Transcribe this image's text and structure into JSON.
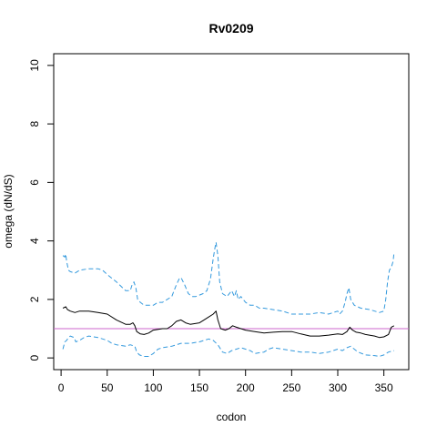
{
  "chart_data": {
    "type": "line",
    "title": "Rv0209",
    "xlabel": "codon",
    "ylabel": "omega (dN/dS)",
    "xlim": [
      -8,
      377
    ],
    "ylim": [
      -0.4,
      10.4
    ],
    "x_ticks": [
      0,
      50,
      100,
      150,
      200,
      250,
      300,
      350
    ],
    "y_ticks": [
      0,
      2,
      4,
      6,
      8,
      10
    ],
    "grid": false,
    "legend": "none",
    "reference_line": {
      "y": 1,
      "color": "#cc66cc"
    },
    "series": [
      {
        "role": "upper",
        "style": "dashed",
        "color": "#3399dd",
        "points": [
          [
            2,
            3.5
          ],
          [
            4,
            3.45
          ],
          [
            5,
            3.55
          ],
          [
            6,
            3.3
          ],
          [
            8,
            3.0
          ],
          [
            10,
            2.95
          ],
          [
            15,
            2.9
          ],
          [
            20,
            3.0
          ],
          [
            30,
            3.05
          ],
          [
            40,
            3.05
          ],
          [
            45,
            3.0
          ],
          [
            50,
            2.85
          ],
          [
            60,
            2.6
          ],
          [
            70,
            2.3
          ],
          [
            75,
            2.3
          ],
          [
            77,
            2.5
          ],
          [
            79,
            2.6
          ],
          [
            81,
            2.4
          ],
          [
            83,
            2.0
          ],
          [
            86,
            1.9
          ],
          [
            90,
            1.8
          ],
          [
            100,
            1.8
          ],
          [
            105,
            1.9
          ],
          [
            110,
            1.9
          ],
          [
            115,
            2.0
          ],
          [
            120,
            2.1
          ],
          [
            125,
            2.5
          ],
          [
            128,
            2.7
          ],
          [
            130,
            2.75
          ],
          [
            134,
            2.5
          ],
          [
            138,
            2.2
          ],
          [
            142,
            2.1
          ],
          [
            146,
            2.1
          ],
          [
            150,
            2.15
          ],
          [
            154,
            2.2
          ],
          [
            158,
            2.3
          ],
          [
            162,
            2.7
          ],
          [
            165,
            3.4
          ],
          [
            167,
            3.8
          ],
          [
            168,
            3.95
          ],
          [
            170,
            3.5
          ],
          [
            172,
            2.6
          ],
          [
            175,
            2.2
          ],
          [
            180,
            2.1
          ],
          [
            185,
            2.3
          ],
          [
            188,
            2.1
          ],
          [
            190,
            2.3
          ],
          [
            192,
            2.0
          ],
          [
            195,
            2.1
          ],
          [
            200,
            1.9
          ],
          [
            205,
            1.8
          ],
          [
            210,
            1.8
          ],
          [
            215,
            1.7
          ],
          [
            220,
            1.7
          ],
          [
            230,
            1.65
          ],
          [
            240,
            1.6
          ],
          [
            250,
            1.5
          ],
          [
            260,
            1.5
          ],
          [
            270,
            1.5
          ],
          [
            280,
            1.55
          ],
          [
            290,
            1.5
          ],
          [
            300,
            1.6
          ],
          [
            302,
            1.5
          ],
          [
            305,
            1.6
          ],
          [
            308,
            1.9
          ],
          [
            310,
            2.2
          ],
          [
            312,
            2.4
          ],
          [
            314,
            2.0
          ],
          [
            318,
            1.8
          ],
          [
            325,
            1.7
          ],
          [
            335,
            1.65
          ],
          [
            340,
            1.6
          ],
          [
            345,
            1.55
          ],
          [
            350,
            1.6
          ],
          [
            352,
            2.0
          ],
          [
            354,
            2.6
          ],
          [
            356,
            3.0
          ],
          [
            358,
            3.1
          ],
          [
            360,
            3.3
          ],
          [
            361,
            3.6
          ]
        ]
      },
      {
        "role": "median",
        "style": "solid",
        "color": "#000000",
        "points": [
          [
            2,
            1.7
          ],
          [
            5,
            1.75
          ],
          [
            7,
            1.65
          ],
          [
            10,
            1.6
          ],
          [
            15,
            1.55
          ],
          [
            20,
            1.6
          ],
          [
            30,
            1.6
          ],
          [
            40,
            1.55
          ],
          [
            50,
            1.5
          ],
          [
            60,
            1.3
          ],
          [
            70,
            1.15
          ],
          [
            75,
            1.15
          ],
          [
            78,
            1.2
          ],
          [
            80,
            1.1
          ],
          [
            82,
            0.9
          ],
          [
            86,
            0.82
          ],
          [
            90,
            0.8
          ],
          [
            95,
            0.85
          ],
          [
            100,
            0.95
          ],
          [
            110,
            1.0
          ],
          [
            115,
            1.0
          ],
          [
            120,
            1.1
          ],
          [
            125,
            1.25
          ],
          [
            130,
            1.3
          ],
          [
            135,
            1.2
          ],
          [
            140,
            1.15
          ],
          [
            150,
            1.2
          ],
          [
            155,
            1.3
          ],
          [
            160,
            1.4
          ],
          [
            165,
            1.5
          ],
          [
            168,
            1.6
          ],
          [
            170,
            1.3
          ],
          [
            173,
            1.0
          ],
          [
            178,
            0.95
          ],
          [
            182,
            1.0
          ],
          [
            186,
            1.1
          ],
          [
            190,
            1.05
          ],
          [
            195,
            1.0
          ],
          [
            200,
            0.95
          ],
          [
            210,
            0.9
          ],
          [
            220,
            0.85
          ],
          [
            230,
            0.88
          ],
          [
            240,
            0.9
          ],
          [
            250,
            0.9
          ],
          [
            260,
            0.82
          ],
          [
            270,
            0.75
          ],
          [
            280,
            0.75
          ],
          [
            290,
            0.78
          ],
          [
            300,
            0.82
          ],
          [
            305,
            0.8
          ],
          [
            310,
            0.9
          ],
          [
            313,
            1.05
          ],
          [
            316,
            0.95
          ],
          [
            320,
            0.88
          ],
          [
            325,
            0.85
          ],
          [
            330,
            0.8
          ],
          [
            340,
            0.75
          ],
          [
            345,
            0.7
          ],
          [
            350,
            0.72
          ],
          [
            355,
            0.8
          ],
          [
            358,
            1.05
          ],
          [
            361,
            1.1
          ]
        ]
      },
      {
        "role": "lower",
        "style": "dashed",
        "color": "#3399dd",
        "points": [
          [
            2,
            0.3
          ],
          [
            4,
            0.55
          ],
          [
            6,
            0.6
          ],
          [
            8,
            0.7
          ],
          [
            10,
            0.75
          ],
          [
            14,
            0.7
          ],
          [
            16,
            0.55
          ],
          [
            20,
            0.6
          ],
          [
            25,
            0.7
          ],
          [
            30,
            0.75
          ],
          [
            40,
            0.7
          ],
          [
            50,
            0.6
          ],
          [
            55,
            0.5
          ],
          [
            60,
            0.45
          ],
          [
            70,
            0.4
          ],
          [
            75,
            0.45
          ],
          [
            80,
            0.4
          ],
          [
            82,
            0.2
          ],
          [
            85,
            0.1
          ],
          [
            90,
            0.05
          ],
          [
            95,
            0.05
          ],
          [
            100,
            0.15
          ],
          [
            105,
            0.3
          ],
          [
            110,
            0.35
          ],
          [
            120,
            0.4
          ],
          [
            130,
            0.5
          ],
          [
            140,
            0.5
          ],
          [
            150,
            0.55
          ],
          [
            155,
            0.6
          ],
          [
            160,
            0.65
          ],
          [
            165,
            0.6
          ],
          [
            170,
            0.45
          ],
          [
            175,
            0.2
          ],
          [
            180,
            0.15
          ],
          [
            185,
            0.25
          ],
          [
            190,
            0.3
          ],
          [
            195,
            0.35
          ],
          [
            200,
            0.3
          ],
          [
            205,
            0.25
          ],
          [
            210,
            0.15
          ],
          [
            220,
            0.2
          ],
          [
            225,
            0.3
          ],
          [
            230,
            0.35
          ],
          [
            240,
            0.3
          ],
          [
            250,
            0.25
          ],
          [
            260,
            0.2
          ],
          [
            270,
            0.2
          ],
          [
            280,
            0.15
          ],
          [
            290,
            0.2
          ],
          [
            300,
            0.3
          ],
          [
            305,
            0.25
          ],
          [
            310,
            0.35
          ],
          [
            314,
            0.4
          ],
          [
            318,
            0.3
          ],
          [
            322,
            0.2
          ],
          [
            330,
            0.1
          ],
          [
            340,
            0.08
          ],
          [
            345,
            0.05
          ],
          [
            350,
            0.1
          ],
          [
            355,
            0.2
          ],
          [
            361,
            0.25
          ]
        ]
      }
    ]
  }
}
